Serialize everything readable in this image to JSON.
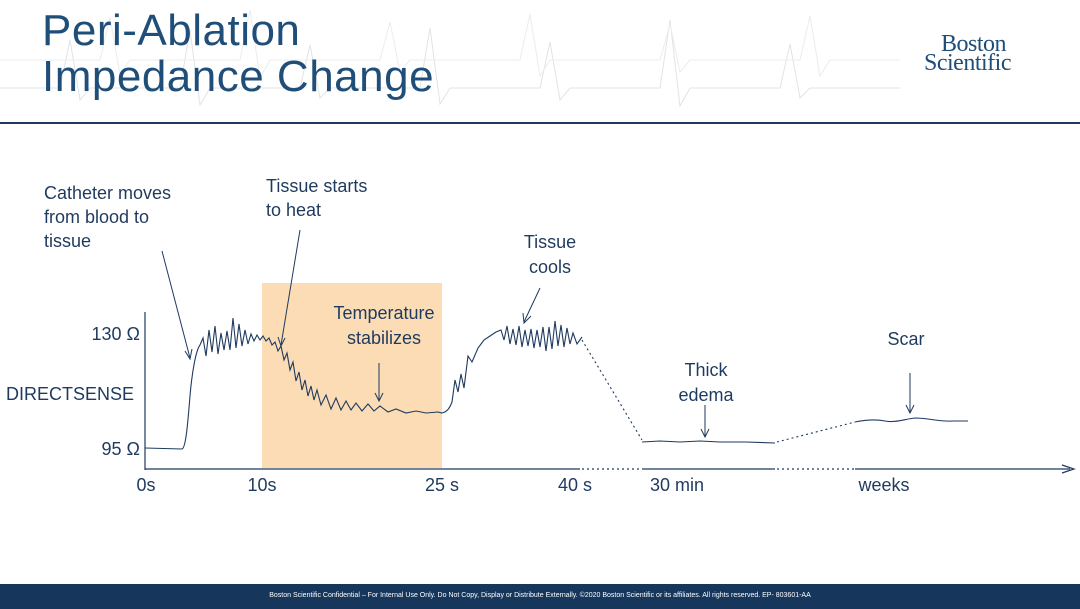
{
  "slide": {
    "title_line1": "Peri-Ablation",
    "title_line2": "Impedance Change",
    "logo_line1": "Boston",
    "logo_line2": "Scientific",
    "footer": "Boston Scientific Confidential – For Internal Use Only. Do Not Copy, Display or Distribute Externally. ©2020 Boston Scientific or its affiliates. All rights reserved. EP- 803601-AA"
  },
  "diagram": {
    "y_axis_label": "DIRECTSENSE",
    "y_ticks": [
      "130 Ω",
      "95 Ω"
    ],
    "x_ticks": [
      "0s",
      "10s",
      "25 s",
      "40 s",
      "30 min",
      "weeks"
    ],
    "annotations": {
      "catheter": [
        "Catheter moves",
        "from blood to",
        "tissue"
      ],
      "heat": [
        "Tissue starts",
        "to heat"
      ],
      "stabilize": [
        "Temperature",
        "stabilizes"
      ],
      "cools": [
        "Tissue",
        "cools"
      ],
      "edema": [
        "Thick",
        "edema"
      ],
      "scar": [
        "Scar"
      ]
    },
    "colors": {
      "line": "#1f3a5f",
      "highlight": "#fbdcb4",
      "title": "#1f4e79",
      "footer": "#16365c"
    }
  }
}
